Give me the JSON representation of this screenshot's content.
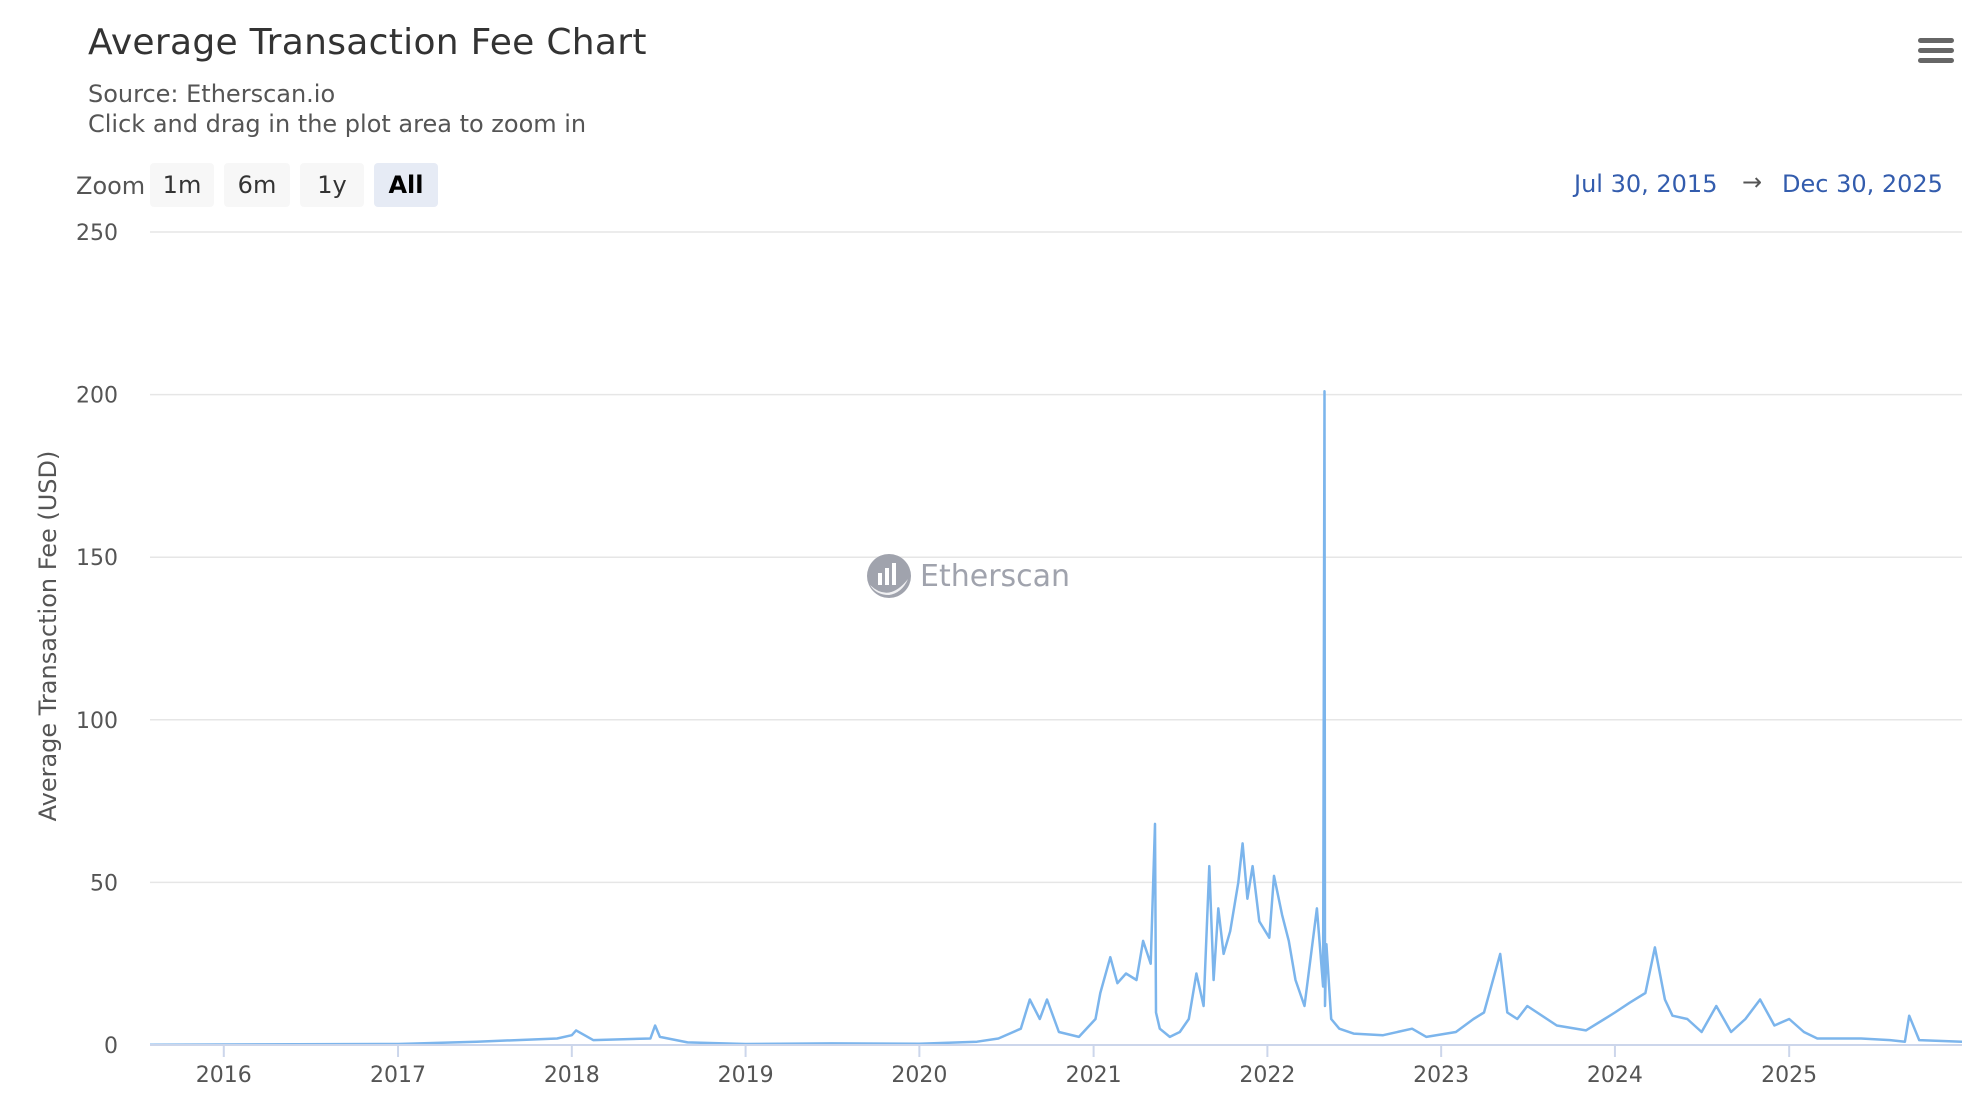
{
  "header": {
    "title": "Average Transaction Fee Chart",
    "source": "Source: Etherscan.io",
    "hint": "Click and drag in the plot area to zoom in"
  },
  "menu": {
    "icon": "hamburger-menu-icon"
  },
  "zoom": {
    "label": "Zoom",
    "buttons": [
      "1m",
      "6m",
      "1y",
      "All"
    ],
    "selected": "All"
  },
  "range": {
    "from": "Jul 30, 2015",
    "arrow": "→",
    "to": "Dec 30, 2025"
  },
  "watermark": {
    "text": "Etherscan",
    "icon": "etherscan-logo-icon"
  },
  "colors": {
    "series": "#7cb5ec",
    "grid": "#e6e6e6",
    "range_text": "#335cad"
  },
  "chart_data": {
    "type": "line",
    "ylabel": "Average Transaction Fee (USD)",
    "ylim": [
      0,
      250
    ],
    "yticks": [
      0,
      50,
      100,
      150,
      200,
      250
    ],
    "xlim": [
      "2015-07-30",
      "2025-12-30"
    ],
    "xticks": [
      "2016",
      "2017",
      "2018",
      "2019",
      "2020",
      "2021",
      "2022",
      "2023",
      "2024",
      "2025"
    ],
    "grid": true,
    "series": [
      {
        "x": [
          "2015-07-30",
          "2016-06-01",
          "2017-01-01",
          "2017-06-15",
          "2017-12-01",
          "2018-01-01",
          "2018-01-10",
          "2018-02-15",
          "2018-06-15",
          "2018-06-25",
          "2018-07-05",
          "2018-09-01",
          "2019-01-01",
          "2019-07-01",
          "2020-01-01",
          "2020-05-01",
          "2020-06-15",
          "2020-08-01",
          "2020-08-20",
          "2020-09-10",
          "2020-09-25",
          "2020-10-20",
          "2020-12-01",
          "2021-01-05",
          "2021-01-15",
          "2021-02-05",
          "2021-02-20",
          "2021-03-10",
          "2021-04-01",
          "2021-04-15",
          "2021-05-01",
          "2021-05-10",
          "2021-05-12",
          "2021-05-20",
          "2021-06-10",
          "2021-07-01",
          "2021-07-20",
          "2021-08-05",
          "2021-08-20",
          "2021-09-01",
          "2021-09-10",
          "2021-09-20",
          "2021-10-01",
          "2021-10-15",
          "2021-11-01",
          "2021-11-10",
          "2021-11-20",
          "2021-12-01",
          "2021-12-15",
          "2022-01-05",
          "2022-01-15",
          "2022-02-01",
          "2022-02-15",
          "2022-03-01",
          "2022-03-20",
          "2022-04-15",
          "2022-04-28",
          "2022-05-01",
          "2022-05-02",
          "2022-05-05",
          "2022-05-15",
          "2022-06-01",
          "2022-07-01",
          "2022-09-01",
          "2022-11-01",
          "2022-12-01",
          "2023-02-01",
          "2023-03-10",
          "2023-04-01",
          "2023-05-05",
          "2023-05-20",
          "2023-06-10",
          "2023-07-01",
          "2023-09-01",
          "2023-11-01",
          "2023-12-10",
          "2024-01-01",
          "2024-02-01",
          "2024-03-05",
          "2024-03-25",
          "2024-04-15",
          "2024-05-01",
          "2024-06-01",
          "2024-07-01",
          "2024-08-01",
          "2024-09-01",
          "2024-10-01",
          "2024-11-01",
          "2024-12-01",
          "2025-01-01",
          "2025-02-01",
          "2025-03-01",
          "2025-06-01",
          "2025-08-01",
          "2025-09-01",
          "2025-09-10",
          "2025-10-01",
          "2025-12-30"
        ],
        "y": [
          0.1,
          0.2,
          0.3,
          1.0,
          2.0,
          3.0,
          4.5,
          1.5,
          2.0,
          6.0,
          2.5,
          0.8,
          0.3,
          0.5,
          0.4,
          1.0,
          2.0,
          5.0,
          14.0,
          8.0,
          14.0,
          4.0,
          2.5,
          8.0,
          16.0,
          27.0,
          19.0,
          22.0,
          20.0,
          32.0,
          25.0,
          68.0,
          10.0,
          5.0,
          2.5,
          4.0,
          8.0,
          22.0,
          12.0,
          55.0,
          20.0,
          42.0,
          28.0,
          35.0,
          50.0,
          62.0,
          45.0,
          55.0,
          38.0,
          33.0,
          52.0,
          40.0,
          32.0,
          20.0,
          12.0,
          42.0,
          18.0,
          201.0,
          12.0,
          31.0,
          8.0,
          5.0,
          3.5,
          3.0,
          5.0,
          2.5,
          4.0,
          8.0,
          10.0,
          28.0,
          10.0,
          8.0,
          12.0,
          6.0,
          4.5,
          8.0,
          10.0,
          13.0,
          16.0,
          30.0,
          14.0,
          9.0,
          8.0,
          4.0,
          12.0,
          4.0,
          8.0,
          14.0,
          6.0,
          8.0,
          4.0,
          2.0,
          2.0,
          1.5,
          1.0,
          9.0,
          1.5,
          1.0
        ]
      }
    ]
  }
}
